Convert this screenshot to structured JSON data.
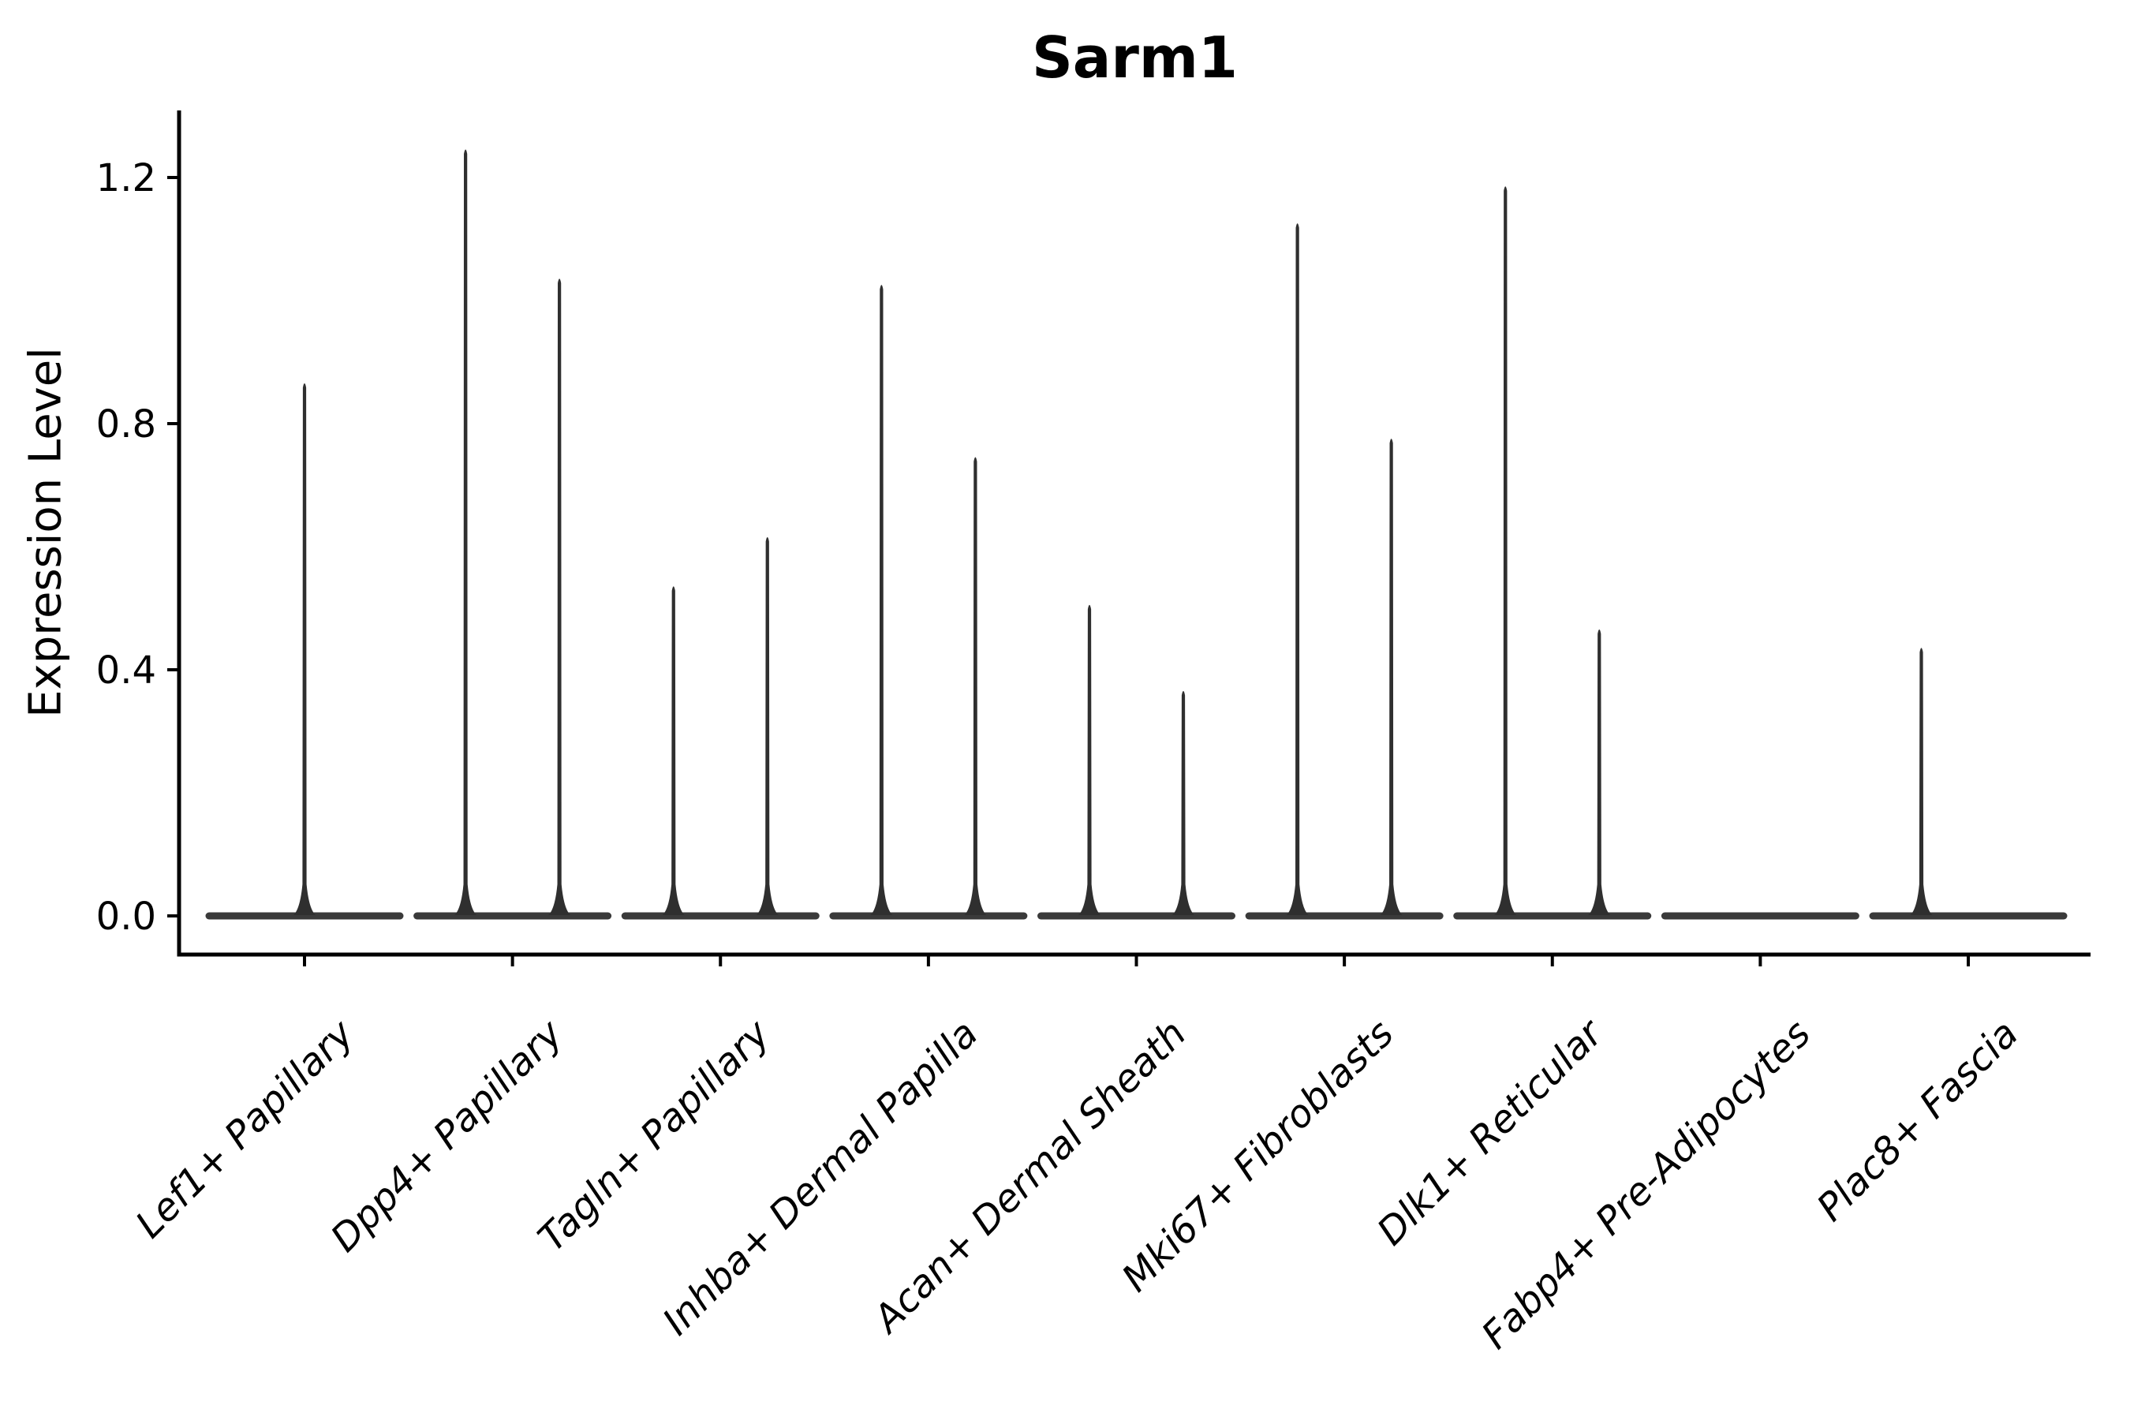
{
  "figure": {
    "background": "#ffffff"
  },
  "chart_data": {
    "type": "violin",
    "title": "Sarm1",
    "ylabel": "Expression Level",
    "ytick_labels": [
      "0.0",
      "0.4",
      "0.8",
      "1.2"
    ],
    "yticks": [
      0.0,
      0.4,
      0.8,
      1.2
    ],
    "ylim": [
      -0.06,
      1.31
    ],
    "grid": false,
    "legend": null,
    "categories": [
      "Lef1+ Papillary",
      "Dpp4+ Papillary",
      "Tagln+ Papillary",
      "Inhba+ Dermal Papilla",
      "Acan+ Dermal Sheath",
      "Mki67+ Fibroblasts",
      "Dlk1+ Reticular",
      "Fabp4+ Pre-Adipocytes",
      "Plac8+ Fascia"
    ],
    "violins": [
      {
        "category": "Lef1+ Papillary",
        "spikes": [
          {
            "offset": 0,
            "max": 0.87
          }
        ]
      },
      {
        "category": "Dpp4+ Papillary",
        "spikes": [
          {
            "offset": -1,
            "max": 1.25
          },
          {
            "offset": 1,
            "max": 1.04
          }
        ]
      },
      {
        "category": "Tagln+ Papillary",
        "spikes": [
          {
            "offset": -1,
            "max": 0.54
          },
          {
            "offset": 1,
            "max": 0.62
          }
        ]
      },
      {
        "category": "Inhba+ Dermal Papilla",
        "spikes": [
          {
            "offset": -1,
            "max": 1.03
          },
          {
            "offset": 1,
            "max": 0.75
          }
        ]
      },
      {
        "category": "Acan+ Dermal Sheath",
        "spikes": [
          {
            "offset": -1,
            "max": 0.51
          },
          {
            "offset": 1,
            "max": 0.37
          }
        ]
      },
      {
        "category": "Mki67+ Fibroblasts",
        "spikes": [
          {
            "offset": -1,
            "max": 1.13
          },
          {
            "offset": 1,
            "max": 0.78
          }
        ]
      },
      {
        "category": "Dlk1+ Reticular",
        "spikes": [
          {
            "offset": -1,
            "max": 1.19
          },
          {
            "offset": 1,
            "max": 0.47
          }
        ]
      },
      {
        "category": "Fabp4+ Pre-Adipocytes",
        "spikes": []
      },
      {
        "category": "Plac8+ Fascia",
        "spikes": [
          {
            "offset": -1,
            "max": 0.44
          }
        ]
      }
    ],
    "style": {
      "ink": "#000000",
      "violin_color": "#2f2f2f",
      "baseline_color": "#3a3a3a"
    }
  }
}
